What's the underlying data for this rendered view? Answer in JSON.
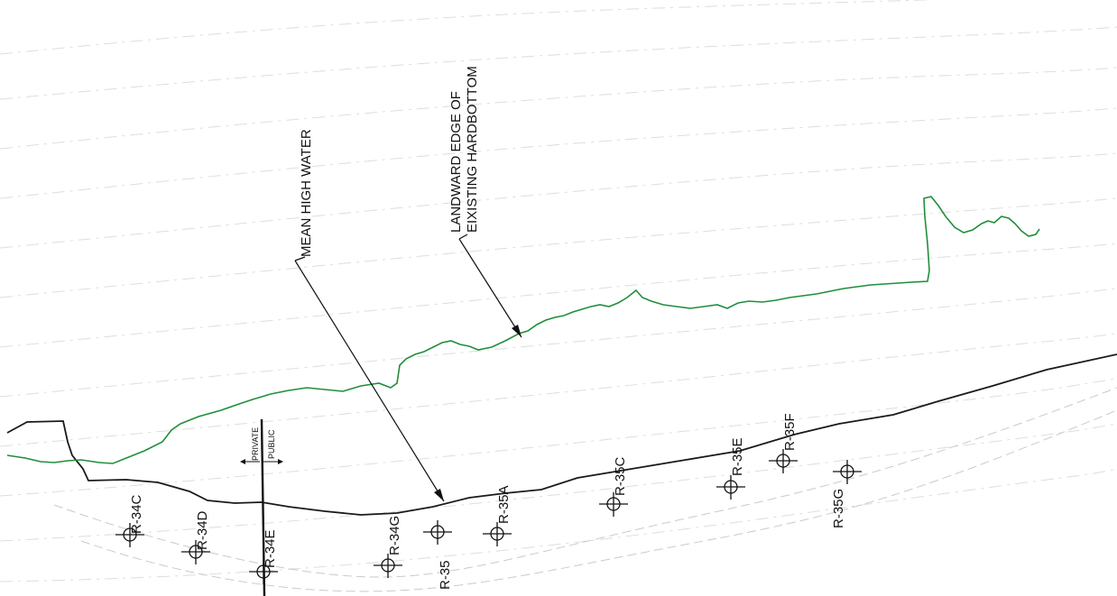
{
  "colors": {
    "shoreline": "#1a1a1a",
    "hardbottom": "#1f8f3a",
    "contours": "#c9c9c9",
    "text": "#111111"
  },
  "annotations": {
    "mean_high_water": "MEAN HIGH WATER",
    "landward_edge_line1": "LANDWARD EDGE OF",
    "landward_edge_line2": "EIXISTING HARDBOTTOM",
    "private": "PRIVATE",
    "public": "PUBLIC"
  },
  "monuments": [
    "R-34C",
    "R-34D",
    "R-34E",
    "R-34G",
    "R-35",
    "R-35A",
    "R-35C",
    "R-35E",
    "R-35F",
    "R-35G"
  ],
  "icons": {
    "monument": "crosshair-circle-icon"
  }
}
